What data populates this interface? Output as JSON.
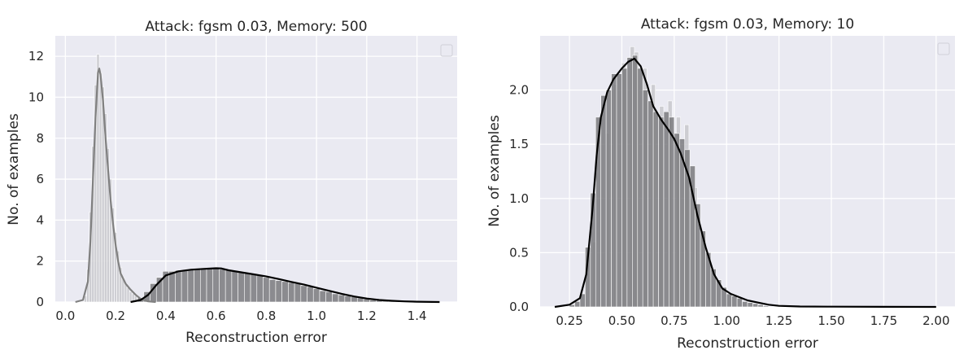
{
  "colors": {
    "panel_bg": "#EAEAF2",
    "grid": "#FFFFFF",
    "clean_hist": "#C8C8CC",
    "clean_kde": "#808080",
    "adv_hist": "#7A7A7E",
    "adv_kde": "#000000"
  },
  "chart_data": [
    {
      "type": "histogram",
      "title": "Attack: fgsm 0.03, Memory: 500",
      "xlabel": "Reconstruction error",
      "ylabel": "No. of examples",
      "xlim": [
        -0.04,
        1.56
      ],
      "ylim": [
        0,
        13
      ],
      "xticks": [
        0.0,
        0.2,
        0.4,
        0.6,
        0.8,
        1.0,
        1.2,
        1.4
      ],
      "xtick_labels": [
        "0.0",
        "0.2",
        "0.4",
        "0.6",
        "0.8",
        "1.0",
        "1.2",
        "1.4"
      ],
      "yticks": [
        0,
        2,
        4,
        6,
        8,
        10,
        12
      ],
      "ytick_labels": [
        "0",
        "2",
        "4",
        "6",
        "8",
        "10",
        "12"
      ],
      "grid": true,
      "legend": "top-right (empty)",
      "series": [
        {
          "role": "clean",
          "bin_width": 0.01,
          "bins": [
            {
              "x": 0.08,
              "y": 0.3
            },
            {
              "x": 0.09,
              "y": 1.6
            },
            {
              "x": 0.1,
              "y": 4.4
            },
            {
              "x": 0.11,
              "y": 7.6
            },
            {
              "x": 0.12,
              "y": 10.6
            },
            {
              "x": 0.13,
              "y": 12.1
            },
            {
              "x": 0.14,
              "y": 11.2
            },
            {
              "x": 0.15,
              "y": 10.5
            },
            {
              "x": 0.16,
              "y": 9.2
            },
            {
              "x": 0.17,
              "y": 7.5
            },
            {
              "x": 0.18,
              "y": 6.0
            },
            {
              "x": 0.19,
              "y": 4.6
            },
            {
              "x": 0.2,
              "y": 3.4
            },
            {
              "x": 0.21,
              "y": 2.5
            },
            {
              "x": 0.22,
              "y": 1.7
            },
            {
              "x": 0.23,
              "y": 1.2
            },
            {
              "x": 0.24,
              "y": 0.9
            },
            {
              "x": 0.25,
              "y": 0.7
            },
            {
              "x": 0.26,
              "y": 0.5
            },
            {
              "x": 0.27,
              "y": 0.4
            },
            {
              "x": 0.28,
              "y": 0.3
            },
            {
              "x": 0.29,
              "y": 0.2
            },
            {
              "x": 0.3,
              "y": 0.1
            }
          ],
          "kde": [
            [
              0.04,
              0.0
            ],
            [
              0.07,
              0.1
            ],
            [
              0.09,
              1.0
            ],
            [
              0.1,
              3.0
            ],
            [
              0.11,
              6.0
            ],
            [
              0.12,
              9.0
            ],
            [
              0.13,
              11.2
            ],
            [
              0.135,
              11.4
            ],
            [
              0.14,
              11.1
            ],
            [
              0.15,
              9.8
            ],
            [
              0.16,
              8.0
            ],
            [
              0.17,
              6.5
            ],
            [
              0.18,
              5.0
            ],
            [
              0.19,
              3.8
            ],
            [
              0.2,
              2.8
            ],
            [
              0.21,
              2.0
            ],
            [
              0.22,
              1.4
            ],
            [
              0.24,
              0.9
            ],
            [
              0.26,
              0.6
            ],
            [
              0.28,
              0.35
            ],
            [
              0.3,
              0.15
            ],
            [
              0.33,
              0.03
            ],
            [
              0.36,
              0.0
            ]
          ]
        },
        {
          "role": "adversarial",
          "bin_width": 0.025,
          "bins": [
            {
              "x": 0.3,
              "y": 0.2
            },
            {
              "x": 0.325,
              "y": 0.5
            },
            {
              "x": 0.35,
              "y": 0.9
            },
            {
              "x": 0.375,
              "y": 1.2
            },
            {
              "x": 0.4,
              "y": 1.5
            },
            {
              "x": 0.425,
              "y": 1.5
            },
            {
              "x": 0.45,
              "y": 1.55
            },
            {
              "x": 0.475,
              "y": 1.55
            },
            {
              "x": 0.5,
              "y": 1.6
            },
            {
              "x": 0.525,
              "y": 1.6
            },
            {
              "x": 0.55,
              "y": 1.65
            },
            {
              "x": 0.575,
              "y": 1.65
            },
            {
              "x": 0.6,
              "y": 1.65
            },
            {
              "x": 0.625,
              "y": 1.6
            },
            {
              "x": 0.65,
              "y": 1.55
            },
            {
              "x": 0.675,
              "y": 1.5
            },
            {
              "x": 0.7,
              "y": 1.45
            },
            {
              "x": 0.725,
              "y": 1.4
            },
            {
              "x": 0.75,
              "y": 1.35
            },
            {
              "x": 0.775,
              "y": 1.3
            },
            {
              "x": 0.8,
              "y": 1.2
            },
            {
              "x": 0.825,
              "y": 1.1
            },
            {
              "x": 0.85,
              "y": 1.05
            },
            {
              "x": 0.875,
              "y": 1.0
            },
            {
              "x": 0.9,
              "y": 0.95
            },
            {
              "x": 0.925,
              "y": 0.9
            },
            {
              "x": 0.95,
              "y": 0.8
            },
            {
              "x": 0.975,
              "y": 0.75
            },
            {
              "x": 1.0,
              "y": 0.65
            },
            {
              "x": 1.025,
              "y": 0.55
            },
            {
              "x": 1.05,
              "y": 0.5
            },
            {
              "x": 1.075,
              "y": 0.4
            },
            {
              "x": 1.1,
              "y": 0.35
            },
            {
              "x": 1.125,
              "y": 0.3
            },
            {
              "x": 1.15,
              "y": 0.25
            },
            {
              "x": 1.175,
              "y": 0.2
            },
            {
              "x": 1.2,
              "y": 0.15
            },
            {
              "x": 1.225,
              "y": 0.1
            },
            {
              "x": 1.25,
              "y": 0.08
            },
            {
              "x": 1.275,
              "y": 0.05
            },
            {
              "x": 1.3,
              "y": 0.04
            },
            {
              "x": 1.325,
              "y": 0.03
            },
            {
              "x": 1.35,
              "y": 0.02
            },
            {
              "x": 1.375,
              "y": 0.02
            },
            {
              "x": 1.4,
              "y": 0.01
            },
            {
              "x": 1.425,
              "y": 0.01
            },
            {
              "x": 1.45,
              "y": 0.01
            },
            {
              "x": 1.475,
              "y": 0.01
            }
          ],
          "kde": [
            [
              0.26,
              0.0
            ],
            [
              0.3,
              0.1
            ],
            [
              0.33,
              0.35
            ],
            [
              0.36,
              0.8
            ],
            [
              0.4,
              1.3
            ],
            [
              0.45,
              1.5
            ],
            [
              0.5,
              1.58
            ],
            [
              0.55,
              1.62
            ],
            [
              0.6,
              1.65
            ],
            [
              0.62,
              1.64
            ],
            [
              0.65,
              1.55
            ],
            [
              0.7,
              1.45
            ],
            [
              0.75,
              1.35
            ],
            [
              0.8,
              1.25
            ],
            [
              0.85,
              1.12
            ],
            [
              0.9,
              0.98
            ],
            [
              0.95,
              0.85
            ],
            [
              1.0,
              0.7
            ],
            [
              1.05,
              0.55
            ],
            [
              1.1,
              0.4
            ],
            [
              1.15,
              0.27
            ],
            [
              1.2,
              0.17
            ],
            [
              1.25,
              0.1
            ],
            [
              1.3,
              0.06
            ],
            [
              1.35,
              0.03
            ],
            [
              1.4,
              0.015
            ],
            [
              1.49,
              0.0
            ]
          ]
        }
      ]
    },
    {
      "type": "histogram",
      "title": "Attack: fgsm 0.03, Memory: 10",
      "xlabel": "Reconstruction error",
      "ylabel": "No. of examples",
      "xlim": [
        0.11,
        2.09
      ],
      "ylim": [
        0,
        2.5
      ],
      "xticks": [
        0.25,
        0.5,
        0.75,
        1.0,
        1.25,
        1.5,
        1.75,
        2.0
      ],
      "xtick_labels": [
        "0.25",
        "0.50",
        "0.75",
        "1.00",
        "1.25",
        "1.50",
        "1.75",
        "2.00"
      ],
      "yticks": [
        0.0,
        0.5,
        1.0,
        1.5,
        2.0
      ],
      "ytick_labels": [
        "0.0",
        "0.5",
        "1.0",
        "1.5",
        "2.0"
      ],
      "grid": true,
      "legend": "top-right (empty)",
      "series": [
        {
          "role": "clean",
          "bin_width": 0.02,
          "bins": [
            {
              "x": 0.37,
              "y": 0.6
            },
            {
              "x": 0.43,
              "y": 1.6
            },
            {
              "x": 0.47,
              "y": 2.05
            },
            {
              "x": 0.51,
              "y": 2.25
            },
            {
              "x": 0.55,
              "y": 2.4
            },
            {
              "x": 0.57,
              "y": 2.35
            },
            {
              "x": 0.61,
              "y": 2.2
            },
            {
              "x": 0.65,
              "y": 2.05
            },
            {
              "x": 0.69,
              "y": 1.85
            },
            {
              "x": 0.73,
              "y": 1.9
            },
            {
              "x": 0.77,
              "y": 1.75
            },
            {
              "x": 0.81,
              "y": 1.68
            },
            {
              "x": 0.85,
              "y": 1.1
            },
            {
              "x": 0.89,
              "y": 0.7
            }
          ],
          "kde": []
        },
        {
          "role": "adversarial",
          "bin_width": 0.025,
          "bins": [
            {
              "x": 0.2625,
              "y": 0.02
            },
            {
              "x": 0.2875,
              "y": 0.05
            },
            {
              "x": 0.3125,
              "y": 0.12
            },
            {
              "x": 0.3375,
              "y": 0.55
            },
            {
              "x": 0.3625,
              "y": 1.05
            },
            {
              "x": 0.3875,
              "y": 1.75
            },
            {
              "x": 0.4125,
              "y": 1.95
            },
            {
              "x": 0.4375,
              "y": 2.0
            },
            {
              "x": 0.4625,
              "y": 2.15
            },
            {
              "x": 0.4875,
              "y": 2.15
            },
            {
              "x": 0.5125,
              "y": 2.2
            },
            {
              "x": 0.5375,
              "y": 2.3
            },
            {
              "x": 0.5625,
              "y": 2.32
            },
            {
              "x": 0.5875,
              "y": 2.2
            },
            {
              "x": 0.6125,
              "y": 2.0
            },
            {
              "x": 0.6375,
              "y": 1.9
            },
            {
              "x": 0.6625,
              "y": 1.8
            },
            {
              "x": 0.6875,
              "y": 1.75
            },
            {
              "x": 0.7125,
              "y": 1.8
            },
            {
              "x": 0.7375,
              "y": 1.75
            },
            {
              "x": 0.7625,
              "y": 1.6
            },
            {
              "x": 0.7875,
              "y": 1.55
            },
            {
              "x": 0.8125,
              "y": 1.45
            },
            {
              "x": 0.8375,
              "y": 1.3
            },
            {
              "x": 0.8625,
              "y": 0.95
            },
            {
              "x": 0.8875,
              "y": 0.7
            },
            {
              "x": 0.9125,
              "y": 0.5
            },
            {
              "x": 0.9375,
              "y": 0.35
            },
            {
              "x": 0.9625,
              "y": 0.25
            },
            {
              "x": 0.9875,
              "y": 0.18
            },
            {
              "x": 1.0125,
              "y": 0.12
            },
            {
              "x": 1.0375,
              "y": 0.1
            },
            {
              "x": 1.0625,
              "y": 0.08
            },
            {
              "x": 1.0875,
              "y": 0.05
            },
            {
              "x": 1.1125,
              "y": 0.04
            },
            {
              "x": 1.1375,
              "y": 0.03
            },
            {
              "x": 1.1625,
              "y": 0.02
            },
            {
              "x": 1.1875,
              "y": 0.01
            }
          ],
          "kde": [
            [
              0.18,
              0.0
            ],
            [
              0.25,
              0.02
            ],
            [
              0.3,
              0.08
            ],
            [
              0.33,
              0.3
            ],
            [
              0.36,
              0.9
            ],
            [
              0.38,
              1.4
            ],
            [
              0.4,
              1.75
            ],
            [
              0.43,
              1.98
            ],
            [
              0.46,
              2.1
            ],
            [
              0.5,
              2.2
            ],
            [
              0.53,
              2.26
            ],
            [
              0.56,
              2.29
            ],
            [
              0.59,
              2.22
            ],
            [
              0.62,
              2.05
            ],
            [
              0.65,
              1.85
            ],
            [
              0.69,
              1.72
            ],
            [
              0.72,
              1.64
            ],
            [
              0.75,
              1.55
            ],
            [
              0.78,
              1.42
            ],
            [
              0.82,
              1.2
            ],
            [
              0.86,
              0.85
            ],
            [
              0.9,
              0.55
            ],
            [
              0.94,
              0.3
            ],
            [
              0.98,
              0.17
            ],
            [
              1.02,
              0.12
            ],
            [
              1.06,
              0.09
            ],
            [
              1.1,
              0.06
            ],
            [
              1.15,
              0.04
            ],
            [
              1.2,
              0.02
            ],
            [
              1.25,
              0.01
            ],
            [
              1.35,
              0.004
            ],
            [
              1.5,
              0.002
            ],
            [
              1.75,
              0.001
            ],
            [
              2.0,
              0.0
            ]
          ]
        }
      ]
    }
  ]
}
